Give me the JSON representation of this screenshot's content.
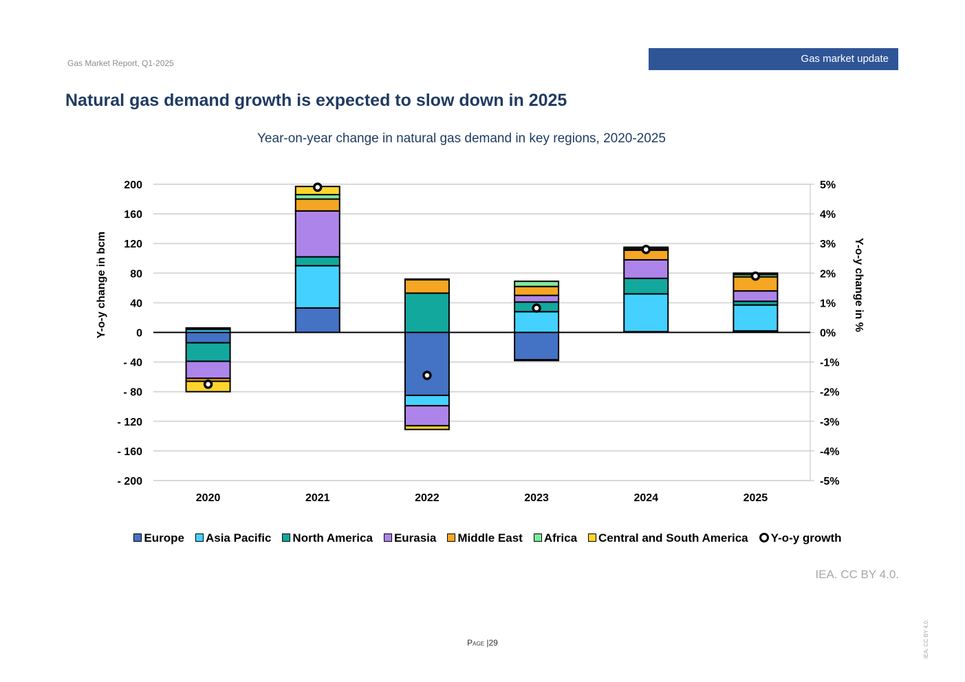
{
  "header": {
    "report_name": "Gas Market Report, Q1-2025",
    "section_label": "Gas market update",
    "section_color": "#2f5597"
  },
  "page_title": "Natural gas demand growth is expected to slow down in 2025",
  "chart_data": {
    "type": "bar",
    "stacked": true,
    "title": "Year-on-year change in natural gas demand in key regions, 2020-2025",
    "ylabel": "Y-o-y change in bcm",
    "y2label": "Y-o-y change in %",
    "categories": [
      "2020",
      "2021",
      "2022",
      "2023",
      "2024",
      "2025"
    ],
    "ylim": [
      -200,
      200
    ],
    "yticks": [
      200,
      160,
      120,
      80,
      40,
      0,
      -40,
      -80,
      -120,
      -160,
      -200
    ],
    "ytick_labels": [
      "200",
      "160",
      "120",
      "80",
      "40",
      "0",
      "- 40",
      "- 80",
      "- 120",
      "- 160",
      "- 200"
    ],
    "y2lim": [
      -5,
      5
    ],
    "y2ticks": [
      5,
      4,
      3,
      2,
      1,
      0,
      -1,
      -2,
      -3,
      -4,
      -5
    ],
    "y2tick_labels": [
      "5%",
      "4%",
      "3%",
      "2%",
      "1%",
      "0%",
      "-1%",
      "-2%",
      "-3%",
      "-4%",
      "-5%"
    ],
    "grid": true,
    "legend_position": "bottom",
    "series": [
      {
        "name": "Europe",
        "color": "#4472c4",
        "values": [
          -14,
          33,
          -85,
          -37,
          1,
          2
        ]
      },
      {
        "name": "Asia Pacific",
        "color": "#44d1ff",
        "values": [
          4,
          57,
          -14,
          28,
          51,
          35
        ]
      },
      {
        "name": "North America",
        "color": "#13a89e",
        "values": [
          -25,
          12,
          53,
          13,
          21,
          5
        ]
      },
      {
        "name": "Eurasia",
        "color": "#ad85ea",
        "values": [
          -23,
          62,
          -27,
          9,
          25,
          14
        ]
      },
      {
        "name": "Middle East",
        "color": "#f5a623",
        "values": [
          -4,
          16,
          18,
          12,
          13,
          19
        ]
      },
      {
        "name": "Africa",
        "color": "#7ee89c",
        "values": [
          2,
          6,
          1,
          7,
          2,
          3
        ]
      },
      {
        "name": "Central and South America",
        "color": "#ffd52c",
        "values": [
          -14,
          11,
          -5,
          -1,
          2,
          2
        ]
      }
    ],
    "line_series": {
      "name": "Y-o-y growth",
      "axis": "right",
      "unit": "%",
      "values": [
        -1.75,
        4.9,
        -1.45,
        0.82,
        2.8,
        1.9
      ]
    }
  },
  "source_note": "IEA. CC BY 4.0.",
  "footer": {
    "page_label": "Page",
    "separator": "|",
    "page_number": "29"
  },
  "side_license": "IEA. CC BY 4.0."
}
